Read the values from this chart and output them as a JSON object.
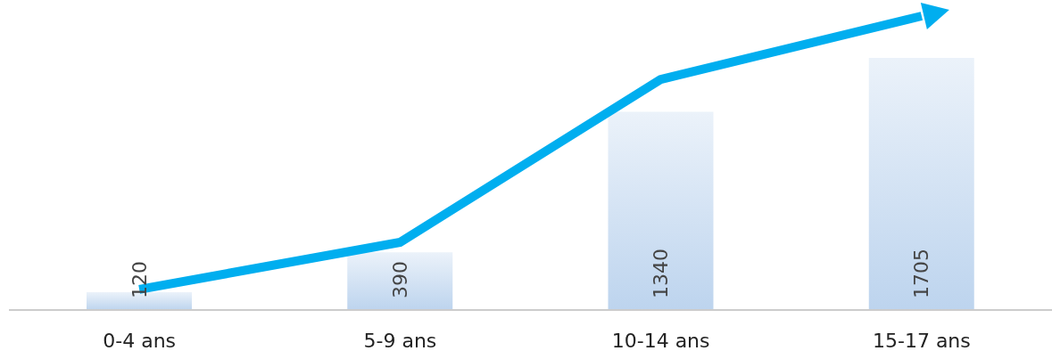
{
  "chart_data": {
    "type": "bar",
    "categories": [
      "0-4 ans",
      "5-9 ans",
      "10-14 ans",
      "15-17 ans"
    ],
    "series": [
      {
        "color": "#bdd4ee",
        "values": [
          120,
          390,
          1340,
          1705
        ],
        "value_labels": [
          "120",
          "390",
          "1340",
          "1705"
        ]
      },
      {
        "type": "line",
        "color": "#00aeef",
        "values": [
          139,
          458,
          1560,
          1988
        ]
      }
    ],
    "grid": false,
    "legend": false
  }
}
